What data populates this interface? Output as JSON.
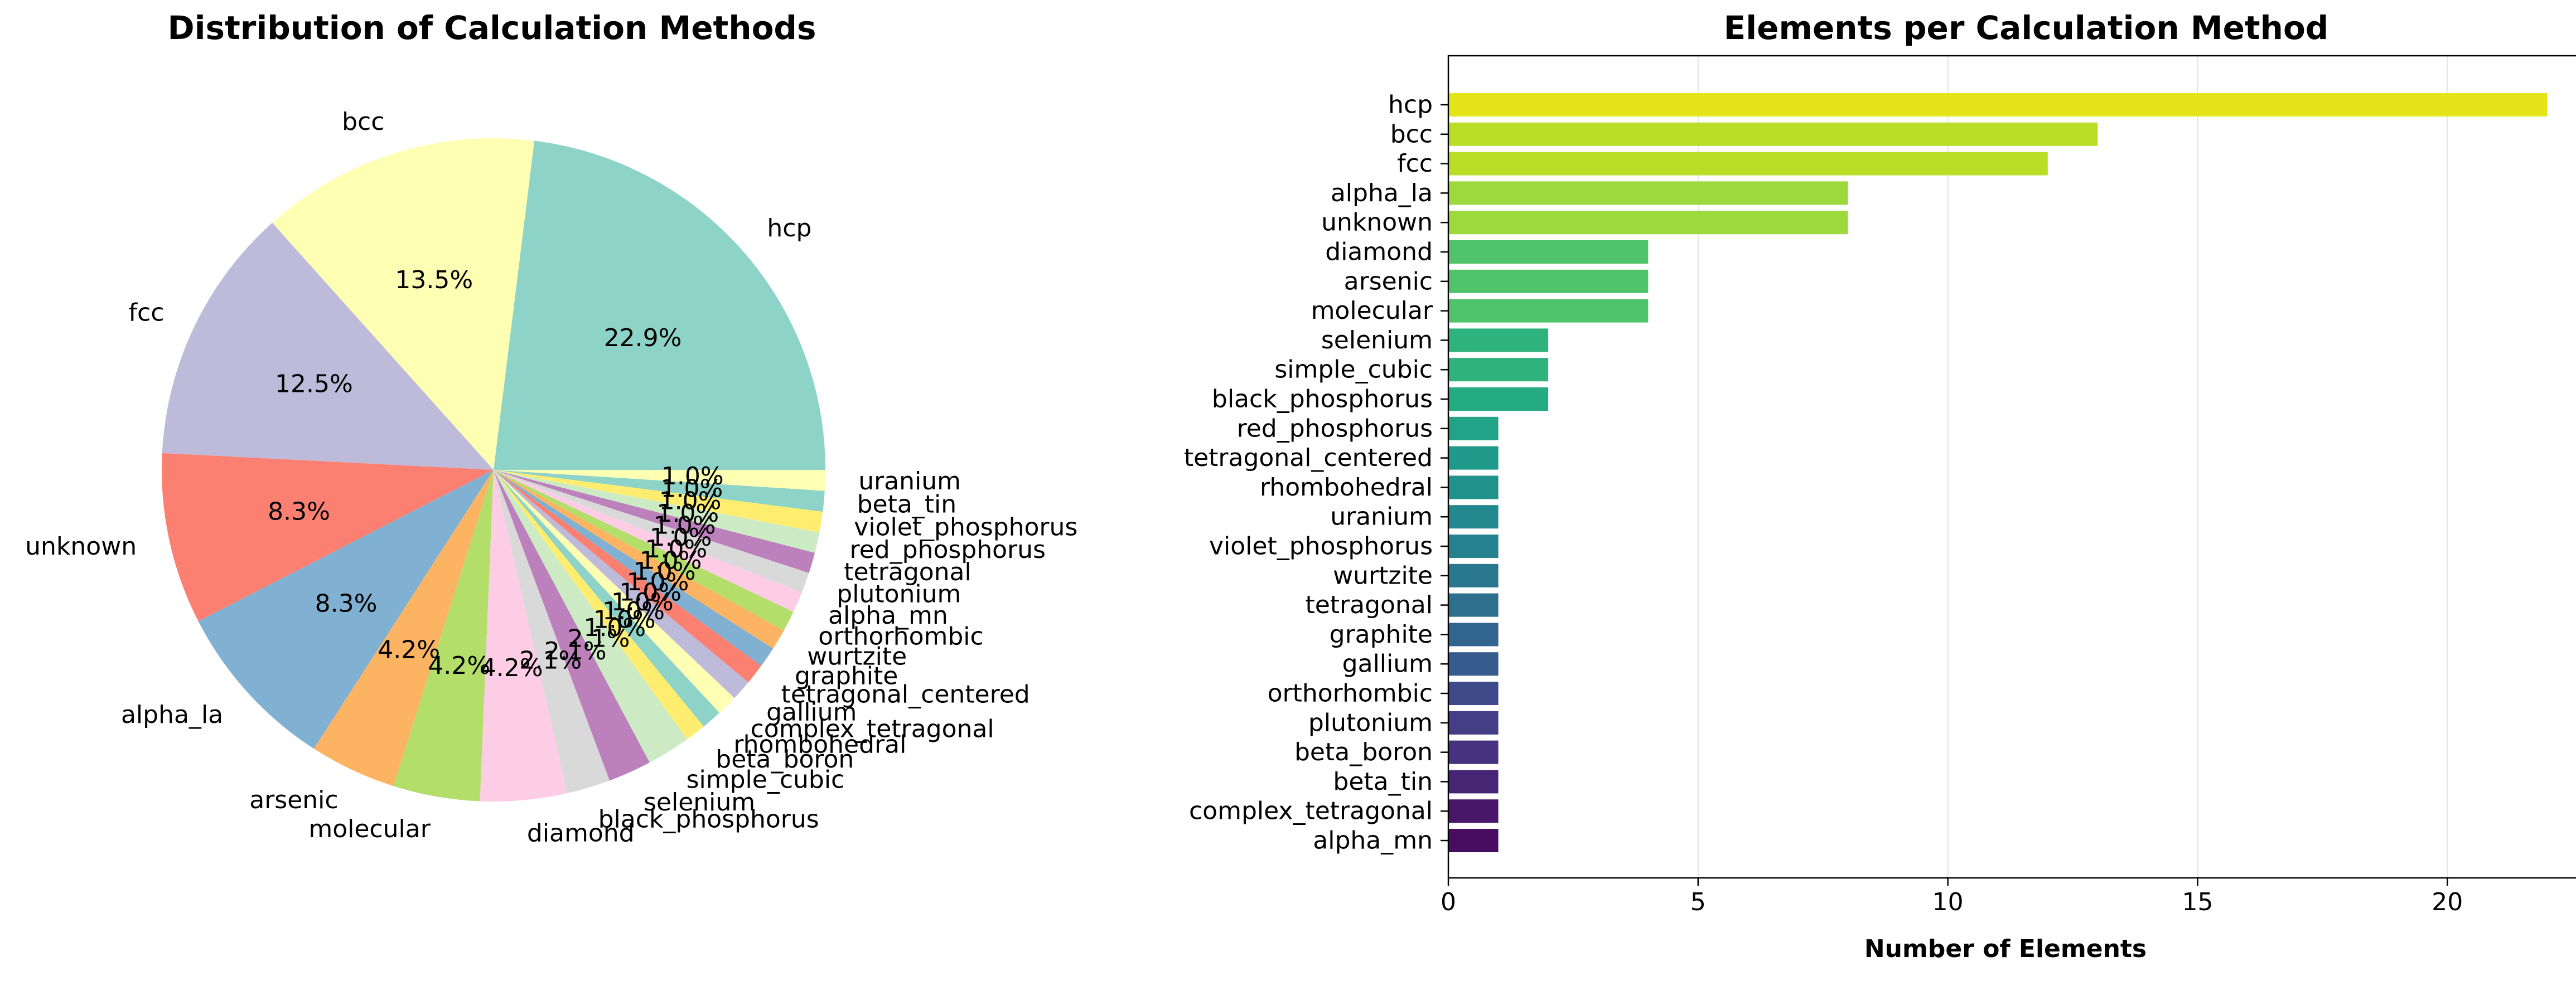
{
  "chart_data": [
    {
      "type": "pie",
      "title": "Distribution of Calculation Methods",
      "slices": [
        {
          "label": "hcp",
          "value": 22.9,
          "pct_label": "22.9%",
          "color": "#8dd3c7"
        },
        {
          "label": "bcc",
          "value": 13.5,
          "pct_label": "13.5%",
          "color": "#ffffb3"
        },
        {
          "label": "fcc",
          "value": 12.5,
          "pct_label": "12.5%",
          "color": "#bebada"
        },
        {
          "label": "unknown",
          "value": 8.3,
          "pct_label": "8.3%",
          "color": "#fb8072"
        },
        {
          "label": "alpha_la",
          "value": 8.3,
          "pct_label": "8.3%",
          "color": "#80b1d3"
        },
        {
          "label": "arsenic",
          "value": 4.2,
          "pct_label": "4.2%",
          "color": "#fdb462"
        },
        {
          "label": "molecular",
          "value": 4.2,
          "pct_label": "4.2%",
          "color": "#b3de69"
        },
        {
          "label": "diamond",
          "value": 4.2,
          "pct_label": "4.2%",
          "color": "#fccde5"
        },
        {
          "label": "black_phosphorus",
          "value": 2.1,
          "pct_label": "2.1%",
          "color": "#d9d9d9"
        },
        {
          "label": "selenium",
          "value": 2.1,
          "pct_label": "2.1%",
          "color": "#bc80bd"
        },
        {
          "label": "simple_cubic",
          "value": 2.1,
          "pct_label": "2.1%",
          "color": "#ccebc5"
        },
        {
          "label": "beta_boron",
          "value": 1.0,
          "pct_label": "1.0%",
          "color": "#ffed6f"
        },
        {
          "label": "rhombohedral",
          "value": 1.0,
          "pct_label": "1.0%",
          "color": "#8dd3c7"
        },
        {
          "label": "complex_tetragonal",
          "value": 1.0,
          "pct_label": "1.0%",
          "color": "#ffffb3"
        },
        {
          "label": "gallium",
          "value": 1.0,
          "pct_label": "1.0%",
          "color": "#bebada"
        },
        {
          "label": "tetragonal_centered",
          "value": 1.0,
          "pct_label": "1.0%",
          "color": "#fb8072"
        },
        {
          "label": "graphite",
          "value": 1.0,
          "pct_label": "1.0%",
          "color": "#80b1d3"
        },
        {
          "label": "wurtzite",
          "value": 1.0,
          "pct_label": "1.0%",
          "color": "#fdb462"
        },
        {
          "label": "orthorhombic",
          "value": 1.0,
          "pct_label": "1.0%",
          "color": "#b3de69"
        },
        {
          "label": "alpha_mn",
          "value": 1.0,
          "pct_label": "1.0%",
          "color": "#fccde5"
        },
        {
          "label": "plutonium",
          "value": 1.0,
          "pct_label": "1.0%",
          "color": "#d9d9d9"
        },
        {
          "label": "tetragonal",
          "value": 1.0,
          "pct_label": "1.0%",
          "color": "#bc80bd"
        },
        {
          "label": "red_phosphorus",
          "value": 1.0,
          "pct_label": "1.0%",
          "color": "#ccebc5"
        },
        {
          "label": "violet_phosphorus",
          "value": 1.0,
          "pct_label": "1.0%",
          "color": "#ffed6f"
        },
        {
          "label": "beta_tin",
          "value": 1.0,
          "pct_label": "1.0%",
          "color": "#8dd3c7"
        },
        {
          "label": "uranium",
          "value": 1.0,
          "pct_label": "1.0%",
          "color": "#ffffb3"
        }
      ]
    },
    {
      "type": "bar",
      "orientation": "horizontal",
      "title": "Elements per Calculation Method",
      "xlabel": "Number of Elements",
      "ylabel": "",
      "xlim": [
        0,
        23
      ],
      "xticks": [
        0,
        5,
        10,
        15,
        20
      ],
      "grid": "x",
      "colormap": "viridis",
      "categories": [
        "hcp",
        "bcc",
        "fcc",
        "alpha_la",
        "unknown",
        "diamond",
        "arsenic",
        "molecular",
        "selenium",
        "simple_cubic",
        "black_phosphorus",
        "red_phosphorus",
        "tetragonal_centered",
        "rhombohedral",
        "uranium",
        "violet_phosphorus",
        "wurtzite",
        "tetragonal",
        "graphite",
        "gallium",
        "orthorhombic",
        "plutonium",
        "beta_boron",
        "beta_tin",
        "complex_tetragonal",
        "alpha_mn"
      ],
      "values": [
        22,
        13,
        12,
        8,
        8,
        4,
        4,
        4,
        2,
        2,
        2,
        1,
        1,
        1,
        1,
        1,
        1,
        1,
        1,
        1,
        1,
        1,
        1,
        1,
        1,
        1
      ],
      "colors": [
        "#e5e419",
        "#bade28",
        "#bade28",
        "#9bd93c",
        "#9bd93c",
        "#50c46a",
        "#50c46a",
        "#50c46a",
        "#2eb37c",
        "#2eb37c",
        "#25ab82",
        "#20a386",
        "#1f9a8a",
        "#21918c",
        "#23898e",
        "#26818e",
        "#2a788e",
        "#2e6f8e",
        "#32658e",
        "#375b8d",
        "#3e4989",
        "#433e85",
        "#46327e",
        "#482475",
        "#481769",
        "#470d60"
      ]
    }
  ]
}
